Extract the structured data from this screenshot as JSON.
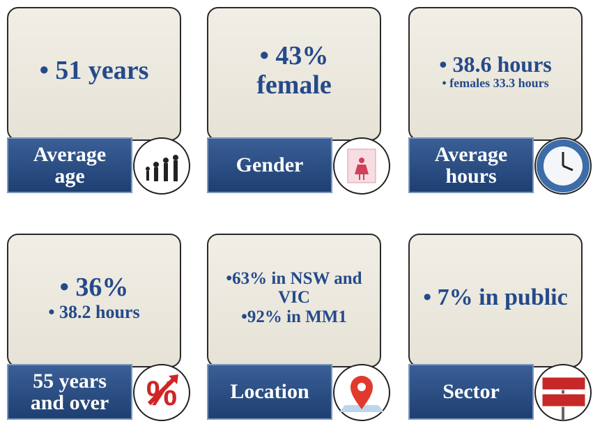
{
  "cards": [
    {
      "lines": [
        "• 51 years"
      ],
      "label": [
        "Average",
        "age"
      ]
    },
    {
      "lines": [
        "• 43%",
        "female"
      ],
      "label": [
        "Gender"
      ]
    },
    {
      "lines": [
        "• 38.6 hours",
        "• females 33.3 hours"
      ],
      "label": [
        "Average",
        "hours"
      ]
    },
    {
      "lines": [
        "• 36%",
        "• 38.2 hours"
      ],
      "label": [
        "55 years",
        "and over"
      ]
    },
    {
      "lines": [
        "•63% in NSW and",
        "VIC",
        "•92% in MM1"
      ],
      "label": [
        "Location"
      ]
    },
    {
      "lines": [
        "• 7% in public"
      ],
      "label": [
        "Sector"
      ]
    }
  ]
}
